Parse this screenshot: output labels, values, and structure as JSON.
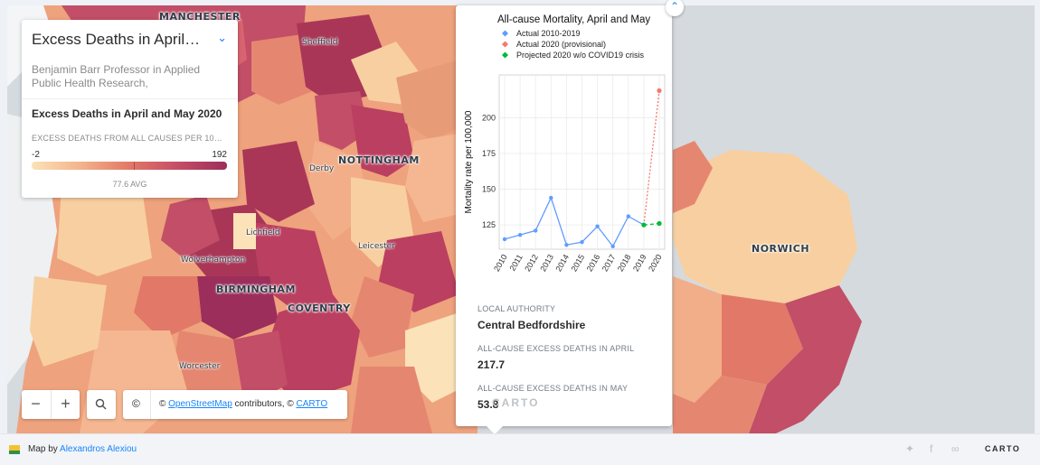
{
  "legend": {
    "title": "Excess Deaths in April a...",
    "description": "Benjamin Barr Professor in Applied Public Health Research,",
    "subtitle": "Excess Deaths in April and May 2020",
    "caption": "EXCESS DEATHS FROM ALL CAUSES PER 100,...",
    "min": "-2",
    "max": "192",
    "avg": "77.6 AVG"
  },
  "places": [
    {
      "name": "MANCHESTER",
      "cls": "big"
    },
    {
      "name": "Sheffield",
      "cls": "small"
    },
    {
      "name": "NOTTINGHAM",
      "cls": "big"
    },
    {
      "name": "Derby",
      "cls": "small"
    },
    {
      "name": "Lichfield",
      "cls": "small"
    },
    {
      "name": "Leicester",
      "cls": "small"
    },
    {
      "name": "Wolverhampton",
      "cls": "small"
    },
    {
      "name": "BIRMINGHAM",
      "cls": "big"
    },
    {
      "name": "COVENTRY",
      "cls": "big"
    },
    {
      "name": "Worcester",
      "cls": "small"
    },
    {
      "name": "NORWICH",
      "cls": "big"
    }
  ],
  "popup": {
    "close_icon": "chevron-up-icon",
    "authority_label": "LOCAL AUTHORITY",
    "authority_value": "Central Bedfordshire",
    "april_label": "ALL-CAUSE EXCESS DEATHS IN APRIL",
    "april_value": "217.7",
    "may_label": "ALL-CAUSE EXCESS DEATHS IN MAY",
    "may_value": "53.8",
    "watermark": "CARTO"
  },
  "chart_data": {
    "type": "line",
    "title": "All-cause Mortality, April and May",
    "ylabel": "Mortality rate per 100,000",
    "xlabel": "",
    "x": [
      "2010",
      "2011",
      "2012",
      "2013",
      "2014",
      "2015",
      "2016",
      "2017",
      "2018",
      "2019",
      "2020"
    ],
    "ylim": [
      108,
      230
    ],
    "yticks": [
      125,
      150,
      175,
      200
    ],
    "grid": true,
    "legend_position": "top-left",
    "series": [
      {
        "name": "Actual 2010-2019",
        "color": "#619cff",
        "style": "solid",
        "points": [
          [
            "2010",
            115
          ],
          [
            "2011",
            118
          ],
          [
            "2012",
            121
          ],
          [
            "2013",
            144
          ],
          [
            "2014",
            111
          ],
          [
            "2015",
            113
          ],
          [
            "2016",
            124
          ],
          [
            "2017",
            110
          ],
          [
            "2018",
            131
          ],
          [
            "2019",
            125
          ]
        ]
      },
      {
        "name": "Actual 2020 (provisional)",
        "color": "#f8766d",
        "style": "dotted",
        "points": [
          [
            "2019",
            125
          ],
          [
            "2020",
            219
          ]
        ]
      },
      {
        "name": "Projected 2020 w/o COVID19 crisis",
        "color": "#00ba38",
        "style": "dashed",
        "points": [
          [
            "2019",
            125
          ],
          [
            "2020",
            126
          ]
        ]
      }
    ]
  },
  "controls": {
    "zoom_out": "−",
    "zoom_in": "+",
    "search_icon": "search-icon",
    "copyright_symbol": "©",
    "attr_prefix": "© ",
    "osm": "OpenStreetMap",
    "attr_mid": " contributors, © ",
    "carto": "CARTO"
  },
  "footer": {
    "map_by": "Map by ",
    "author": "Alexandros Alexiou",
    "brand": "CARTO"
  }
}
